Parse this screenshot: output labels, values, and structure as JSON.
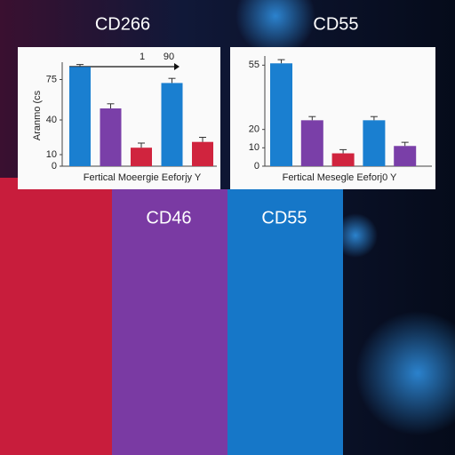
{
  "labels": [
    "CD266",
    "CD55",
    "CD46",
    "CD55"
  ],
  "chart_data": [
    {
      "type": "bar",
      "y_label": "Aranmo (cs",
      "x_label": "Fertical Moeergie Eeforjy Y",
      "annotations": [
        "1",
        "90"
      ],
      "categories": [
        null,
        null,
        null,
        null,
        null
      ],
      "values": [
        86,
        50,
        16,
        72,
        21
      ],
      "errors": [
        2,
        4,
        4,
        4,
        4
      ],
      "colors": [
        "#1a7fd0",
        "#7a3fa8",
        "#d0243e",
        "#1a7fd0",
        "#d0243e"
      ],
      "ylim": [
        0,
        90
      ],
      "yticks": [
        0,
        10,
        40,
        75
      ]
    },
    {
      "type": "bar",
      "x_label": "Fertical Mesegle Eeforj0 Y",
      "categories": [
        null,
        null,
        null,
        null,
        null
      ],
      "values": [
        56,
        25,
        7,
        25,
        11
      ],
      "errors": [
        2,
        2,
        2,
        2,
        2
      ],
      "colors": [
        "#1a7fd0",
        "#7a3fa8",
        "#d0243e",
        "#1a7fd0",
        "#7a3fa8"
      ],
      "ylim": [
        0,
        60
      ],
      "yticks": [
        0,
        10,
        20,
        55
      ]
    }
  ]
}
